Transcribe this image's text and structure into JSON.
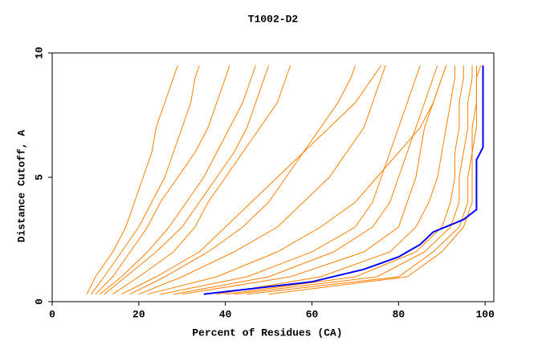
{
  "chart_data": {
    "type": "line",
    "title": "T1002-D2",
    "x_label": "Percent of Residues (CA)",
    "y_label": "Distance Cutoff, A",
    "xlim": [
      0,
      102
    ],
    "ylim": [
      0,
      10
    ],
    "xticks": [
      0,
      20,
      40,
      60,
      80,
      100
    ],
    "yticks": [
      0,
      5,
      10
    ],
    "series": [
      {
        "color": "#ff8000",
        "x": [
          8,
          10,
          14,
          17,
          19,
          21,
          23,
          24,
          26,
          28,
          29
        ],
        "values": [
          0.3,
          1,
          2,
          3,
          4,
          5,
          6,
          7,
          8,
          9,
          9.5
        ]
      },
      {
        "color": "#ff8000",
        "x": [
          9,
          12,
          16,
          20,
          23,
          26,
          28,
          30,
          32,
          33,
          34
        ],
        "values": [
          0.3,
          1,
          2,
          3,
          4,
          5,
          6,
          7,
          8,
          9,
          9.5
        ]
      },
      {
        "color": "#ff8000",
        "x": [
          10,
          14,
          18,
          22,
          25,
          29,
          33,
          36,
          38,
          40,
          41
        ],
        "values": [
          0.3,
          1,
          2,
          3,
          4,
          5,
          6,
          7,
          8,
          9,
          9.5
        ]
      },
      {
        "color": "#ff8000",
        "x": [
          11,
          16,
          22,
          27,
          31,
          35,
          38,
          41,
          44,
          46,
          47
        ],
        "values": [
          0.3,
          1,
          2,
          3,
          4,
          5,
          6,
          7,
          8,
          9,
          9.5
        ]
      },
      {
        "color": "#ff8000",
        "x": [
          14,
          20,
          28,
          33,
          36,
          40,
          44,
          48,
          52,
          54,
          55
        ],
        "values": [
          0.3,
          1,
          2,
          3,
          4,
          5,
          6,
          7,
          8,
          9,
          9.5
        ]
      },
      {
        "color": "#ff8000",
        "x": [
          12,
          17,
          24,
          30,
          34,
          38,
          42,
          45,
          47,
          49,
          50
        ],
        "values": [
          0.3,
          1,
          2,
          3,
          4,
          5,
          6,
          7,
          8,
          9,
          9.5
        ]
      },
      {
        "color": "#ff8000",
        "x": [
          18,
          26,
          36,
          44,
          50,
          54,
          58,
          62,
          66,
          69,
          70
        ],
        "values": [
          0.3,
          1,
          2,
          3,
          4,
          5,
          6,
          7,
          8,
          9,
          9.5
        ]
      },
      {
        "color": "#ff8000",
        "x": [
          20,
          30,
          42,
          52,
          58,
          64,
          68,
          72,
          74,
          76,
          77
        ],
        "values": [
          0.3,
          1,
          2,
          3,
          4,
          5,
          6,
          7,
          8,
          9,
          9.5
        ]
      },
      {
        "color": "#ff8000",
        "x": [
          25,
          45,
          60,
          70,
          74,
          76,
          78,
          80,
          82,
          84,
          85
        ],
        "values": [
          0.3,
          1,
          2,
          3,
          4,
          5,
          6,
          7,
          8,
          9,
          9.5
        ]
      },
      {
        "color": "#ff8000",
        "x": [
          30,
          55,
          72,
          80,
          82,
          84,
          85,
          86,
          88,
          90,
          91
        ],
        "values": [
          0.3,
          1,
          2,
          3,
          4,
          5,
          6,
          7,
          8,
          9,
          9.5
        ]
      },
      {
        "color": "#ff8000",
        "x": [
          38,
          62,
          78,
          84,
          87,
          89,
          90,
          91,
          92,
          93,
          93
        ],
        "values": [
          0.3,
          1,
          2,
          3,
          4,
          5,
          6,
          7,
          8,
          9,
          9.5
        ]
      },
      {
        "color": "#ff8000",
        "x": [
          40,
          70,
          84,
          90,
          92,
          93,
          93,
          94,
          94,
          95,
          95
        ],
        "values": [
          0.3,
          1,
          2,
          3,
          4,
          5,
          6,
          7,
          8,
          9,
          9.5
        ]
      },
      {
        "color": "#ff8000",
        "x": [
          42,
          75,
          86,
          92,
          94,
          94,
          95,
          96,
          96,
          97,
          97
        ],
        "values": [
          0.3,
          1,
          2,
          3,
          4,
          5,
          6,
          7,
          8,
          9,
          9.5
        ]
      },
      {
        "color": "#ff8000",
        "x": [
          45,
          80,
          88,
          94,
          96,
          96,
          97,
          97,
          98,
          98,
          98
        ],
        "values": [
          0.3,
          1,
          2,
          3,
          4,
          5,
          6,
          7,
          8,
          9,
          9.5
        ]
      },
      {
        "color": "#ff8000",
        "x": [
          50,
          82,
          90,
          95,
          97,
          97,
          97,
          98,
          98,
          98,
          99
        ],
        "values": [
          0.3,
          1,
          2,
          3,
          4,
          5,
          6,
          7,
          8,
          9,
          9.5
        ]
      },
      {
        "color": "#ff8000",
        "x": [
          28,
          50,
          65,
          74,
          78,
          80,
          82,
          84,
          86,
          88,
          89
        ],
        "values": [
          0.3,
          1,
          2,
          3,
          4,
          5,
          6,
          7,
          8,
          9,
          9.5
        ]
      },
      {
        "color": "#ff8000",
        "x": [
          22,
          38,
          52,
          62,
          70,
          75,
          80,
          85,
          88,
          90,
          91
        ],
        "values": [
          0.3,
          1,
          2,
          3,
          4,
          5,
          6,
          7,
          8,
          9,
          9.5
        ]
      },
      {
        "color": "#ff8000",
        "x": [
          16,
          24,
          34,
          40,
          46,
          52,
          58,
          64,
          70,
          74,
          76
        ],
        "values": [
          0.3,
          1,
          2,
          3,
          4,
          5,
          6,
          7,
          8,
          9,
          9.5
        ]
      },
      {
        "color": "#0000ff",
        "x": [
          35,
          60,
          72,
          80,
          85,
          88,
          95,
          98,
          98,
          99.5,
          99.5
        ],
        "values": [
          0.3,
          0.8,
          1.3,
          1.8,
          2.3,
          2.8,
          3.3,
          3.7,
          5.7,
          6.2,
          9.5
        ]
      }
    ]
  }
}
